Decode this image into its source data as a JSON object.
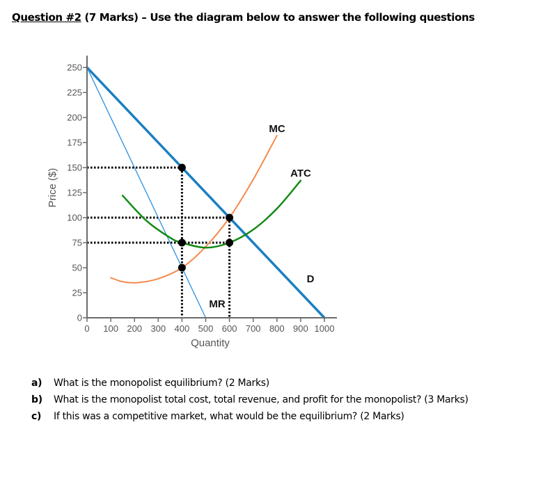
{
  "header": {
    "question_number": "Question #2",
    "rest": " (7 Marks) – Use the diagram below to answer the following questions"
  },
  "chart_data": {
    "type": "line",
    "title": "",
    "xlabel": "Quantity",
    "ylabel": "Price ($)",
    "xlim": [
      0,
      1000
    ],
    "ylim": [
      0,
      250
    ],
    "x_ticks": [
      "0",
      "100",
      "200",
      "300",
      "400",
      "500",
      "600",
      "700",
      "800",
      "900",
      "1000"
    ],
    "y_ticks": [
      "0",
      "25",
      "50",
      "75",
      "100",
      "125",
      "150",
      "175",
      "200",
      "225",
      "250"
    ],
    "grid": false,
    "series": [
      {
        "name": "D",
        "color": "#1a7fc1",
        "points": [
          [
            0,
            250
          ],
          [
            1000,
            0
          ]
        ]
      },
      {
        "name": "MR",
        "color": "#2a8fe0",
        "points": [
          [
            0,
            250
          ],
          [
            500,
            0
          ]
        ]
      },
      {
        "name": "MC",
        "color": "#f7894a",
        "points": [
          [
            100,
            40
          ],
          [
            150,
            36
          ],
          [
            210,
            35
          ],
          [
            300,
            39
          ],
          [
            400,
            50
          ],
          [
            500,
            71
          ],
          [
            600,
            100
          ],
          [
            700,
            138
          ],
          [
            800,
            182
          ]
        ]
      },
      {
        "name": "ATC",
        "color": "#138a13",
        "points": [
          [
            150,
            122
          ],
          [
            250,
            97
          ],
          [
            350,
            80
          ],
          [
            400,
            75
          ],
          [
            500,
            70
          ],
          [
            600,
            75
          ],
          [
            700,
            88
          ],
          [
            800,
            109
          ],
          [
            900,
            137
          ]
        ]
      }
    ],
    "labels": [
      {
        "text": "MC",
        "x": 800,
        "y": 190
      },
      {
        "text": "ATC",
        "x": 900,
        "y": 145
      },
      {
        "text": "D",
        "x": 915,
        "y": 40
      },
      {
        "text": "MR",
        "x": 555,
        "y": 15
      }
    ],
    "marked_points": [
      {
        "x": 400,
        "y": 150
      },
      {
        "x": 400,
        "y": 75
      },
      {
        "x": 400,
        "y": 50
      },
      {
        "x": 600,
        "y": 100
      },
      {
        "x": 600,
        "y": 75
      }
    ],
    "dotted_guides": {
      "horizontal": [
        150,
        100,
        75
      ],
      "vertical": [
        400,
        600
      ]
    }
  },
  "questions": [
    {
      "letter": "a)",
      "text": "What is the monopolist equilibrium? (2 Marks)"
    },
    {
      "letter": "b)",
      "text": "What is the monopolist total cost, total revenue, and profit for the monopolist? (3 Marks)"
    },
    {
      "letter": "c)",
      "text": "If this was a competitive market, what would be the equilibrium? (2 Marks)"
    }
  ]
}
